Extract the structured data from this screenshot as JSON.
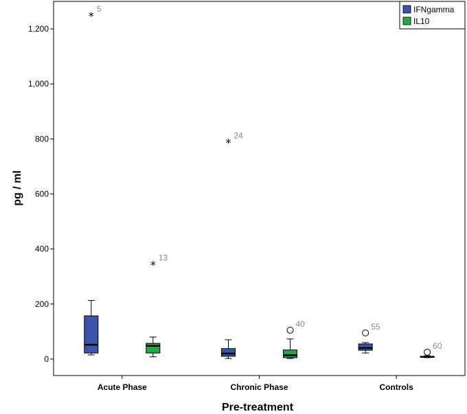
{
  "chart_data": {
    "type": "boxplot",
    "xlabel": "Pre-treatment",
    "ylabel": "pg / ml",
    "ylim": [
      -60,
      1300
    ],
    "yticks": [
      0,
      200,
      400,
      600,
      800,
      1000,
      1200
    ],
    "ytick_labels": [
      "0",
      "200",
      "400",
      "600",
      "800",
      "1,000",
      "1,200"
    ],
    "grid": false,
    "legend_position": "top-right",
    "categories": [
      "Acute Phase",
      "Chronic Phase",
      "Controls"
    ],
    "series": [
      {
        "name": "IFNgamma",
        "color": "#3b55a8",
        "boxes": [
          {
            "min": 15,
            "q1": 22,
            "median": 52,
            "q3": 157,
            "max": 213
          },
          {
            "min": 2,
            "q1": 10,
            "median": 20,
            "q3": 38,
            "max": 70
          },
          {
            "min": 22,
            "q1": 32,
            "median": 40,
            "q3": 55,
            "max": 60
          }
        ],
        "outliers": [
          {
            "cat": 0,
            "y": 1250,
            "marker": "star",
            "label": "5"
          },
          {
            "cat": 1,
            "y": 790,
            "marker": "star",
            "label": "24"
          },
          {
            "cat": 2,
            "y": 95,
            "marker": "circle",
            "label": "55"
          }
        ]
      },
      {
        "name": "IL10",
        "color": "#27a64a",
        "boxes": [
          {
            "min": 8,
            "q1": 22,
            "median": 48,
            "q3": 57,
            "max": 80
          },
          {
            "min": 2,
            "q1": 5,
            "median": 14,
            "q3": 33,
            "max": 73
          },
          {
            "min": 5,
            "q1": 6,
            "median": 8,
            "q3": 10,
            "max": 12
          }
        ],
        "outliers": [
          {
            "cat": 0,
            "y": 345,
            "marker": "star",
            "label": "13"
          },
          {
            "cat": 1,
            "y": 105,
            "marker": "circle",
            "label": "40"
          },
          {
            "cat": 2,
            "y": 25,
            "marker": "circle",
            "label": "60"
          }
        ]
      }
    ]
  }
}
